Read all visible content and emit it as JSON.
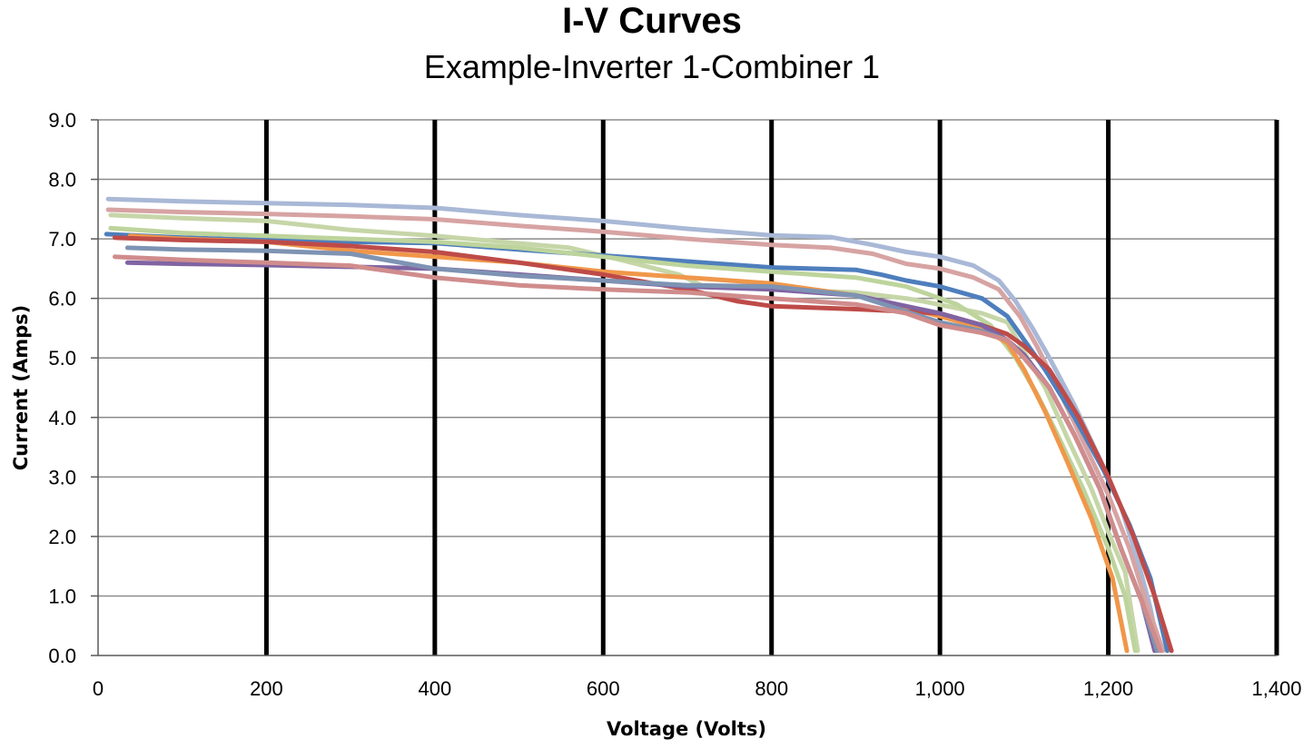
{
  "chart_data": {
    "type": "line",
    "title": "I-V Curves",
    "subtitle": "Example-Inverter 1-Combiner 1",
    "xlabel": "Voltage (Volts)",
    "ylabel": "Current (Amps)",
    "xlim": [
      0,
      1400
    ],
    "ylim": [
      0,
      9
    ],
    "x_ticks": [
      0,
      200,
      400,
      600,
      800,
      1000,
      1200,
      1400
    ],
    "x_tick_labels": [
      "0",
      "200",
      "400",
      "600",
      "800",
      "1,000",
      "1,200",
      "1,400"
    ],
    "y_ticks": [
      0,
      1,
      2,
      3,
      4,
      5,
      6,
      7,
      8,
      9
    ],
    "y_tick_labels": [
      "0.0",
      "1.0",
      "2.0",
      "3.0",
      "4.0",
      "5.0",
      "6.0",
      "7.0",
      "8.0",
      "9.0"
    ],
    "grid": {
      "horizontal": true,
      "vertical": true
    },
    "legend": "none",
    "series": [
      {
        "color": "#a9b8d6",
        "points": [
          [
            12,
            7.67
          ],
          [
            100,
            7.63
          ],
          [
            200,
            7.6
          ],
          [
            300,
            7.57
          ],
          [
            400,
            7.52
          ],
          [
            500,
            7.4
          ],
          [
            600,
            7.3
          ],
          [
            700,
            7.17
          ],
          [
            800,
            7.06
          ],
          [
            870,
            7.03
          ],
          [
            920,
            6.9
          ],
          [
            960,
            6.78
          ],
          [
            1000,
            6.7
          ],
          [
            1040,
            6.55
          ],
          [
            1070,
            6.3
          ],
          [
            1090,
            5.95
          ],
          [
            1110,
            5.5
          ],
          [
            1130,
            5.0
          ],
          [
            1160,
            4.2
          ],
          [
            1190,
            3.3
          ],
          [
            1215,
            2.5
          ],
          [
            1235,
            1.6
          ],
          [
            1250,
            0.8
          ],
          [
            1260,
            0.08
          ]
        ]
      },
      {
        "color": "#d7a3a3",
        "points": [
          [
            12,
            7.49
          ],
          [
            100,
            7.45
          ],
          [
            200,
            7.42
          ],
          [
            300,
            7.38
          ],
          [
            400,
            7.33
          ],
          [
            500,
            7.22
          ],
          [
            600,
            7.12
          ],
          [
            700,
            7.0
          ],
          [
            800,
            6.9
          ],
          [
            870,
            6.85
          ],
          [
            920,
            6.75
          ],
          [
            960,
            6.58
          ],
          [
            1000,
            6.5
          ],
          [
            1040,
            6.35
          ],
          [
            1070,
            6.15
          ],
          [
            1095,
            5.7
          ],
          [
            1115,
            5.2
          ],
          [
            1140,
            4.5
          ],
          [
            1170,
            3.6
          ],
          [
            1200,
            2.7
          ],
          [
            1225,
            1.8
          ],
          [
            1245,
            0.9
          ],
          [
            1265,
            0.08
          ]
        ]
      },
      {
        "color": "#c6d6a8",
        "points": [
          [
            15,
            7.4
          ],
          [
            100,
            7.35
          ],
          [
            200,
            7.3
          ],
          [
            300,
            7.15
          ],
          [
            400,
            7.05
          ],
          [
            480,
            6.95
          ],
          [
            560,
            6.85
          ],
          [
            620,
            6.65
          ],
          [
            690,
            6.4
          ],
          [
            720,
            6.2
          ],
          [
            800,
            6.15
          ],
          [
            900,
            6.1
          ],
          [
            960,
            6.0
          ],
          [
            980,
            5.95
          ],
          [
            1050,
            5.75
          ],
          [
            1080,
            5.6
          ],
          [
            1100,
            5.1
          ],
          [
            1125,
            4.5
          ],
          [
            1150,
            3.7
          ],
          [
            1180,
            2.8
          ],
          [
            1205,
            1.9
          ],
          [
            1220,
            1.4
          ],
          [
            1228,
            0.7
          ],
          [
            1235,
            0.08
          ]
        ]
      },
      {
        "color": "#4e7ebd",
        "points": [
          [
            10,
            7.08
          ],
          [
            100,
            7.02
          ],
          [
            200,
            6.98
          ],
          [
            300,
            6.95
          ],
          [
            400,
            6.93
          ],
          [
            500,
            6.82
          ],
          [
            600,
            6.72
          ],
          [
            700,
            6.62
          ],
          [
            800,
            6.52
          ],
          [
            900,
            6.48
          ],
          [
            930,
            6.4
          ],
          [
            960,
            6.3
          ],
          [
            1000,
            6.2
          ],
          [
            1050,
            6.0
          ],
          [
            1080,
            5.7
          ],
          [
            1100,
            5.3
          ],
          [
            1125,
            4.8
          ],
          [
            1160,
            4.0
          ],
          [
            1195,
            3.1
          ],
          [
            1225,
            2.2
          ],
          [
            1250,
            1.3
          ],
          [
            1270,
            0.08
          ]
        ]
      },
      {
        "color": "#bdd49c",
        "points": [
          [
            15,
            7.18
          ],
          [
            100,
            7.1
          ],
          [
            200,
            7.05
          ],
          [
            300,
            7.0
          ],
          [
            400,
            6.95
          ],
          [
            500,
            6.85
          ],
          [
            600,
            6.7
          ],
          [
            700,
            6.55
          ],
          [
            800,
            6.45
          ],
          [
            900,
            6.35
          ],
          [
            960,
            6.2
          ],
          [
            1020,
            5.9
          ],
          [
            1060,
            5.55
          ],
          [
            1090,
            5.0
          ],
          [
            1115,
            4.4
          ],
          [
            1140,
            3.7
          ],
          [
            1170,
            2.8
          ],
          [
            1200,
            1.8
          ],
          [
            1220,
            1.0
          ],
          [
            1232,
            0.08
          ]
        ]
      },
      {
        "color": "#f0974a",
        "points": [
          [
            38,
            7.05
          ],
          [
            100,
            7.0
          ],
          [
            200,
            6.95
          ],
          [
            300,
            6.8
          ],
          [
            400,
            6.7
          ],
          [
            500,
            6.6
          ],
          [
            600,
            6.45
          ],
          [
            700,
            6.35
          ],
          [
            800,
            6.25
          ],
          [
            900,
            6.05
          ],
          [
            1000,
            5.7
          ],
          [
            1050,
            5.5
          ],
          [
            1080,
            5.25
          ],
          [
            1100,
            4.8
          ],
          [
            1125,
            4.1
          ],
          [
            1150,
            3.3
          ],
          [
            1180,
            2.3
          ],
          [
            1205,
            1.3
          ],
          [
            1222,
            0.08
          ]
        ]
      },
      {
        "color": "#be4b48",
        "points": [
          [
            20,
            7.02
          ],
          [
            100,
            6.98
          ],
          [
            200,
            6.95
          ],
          [
            300,
            6.88
          ],
          [
            400,
            6.78
          ],
          [
            500,
            6.6
          ],
          [
            600,
            6.4
          ],
          [
            700,
            6.15
          ],
          [
            760,
            5.95
          ],
          [
            800,
            5.87
          ],
          [
            900,
            5.82
          ],
          [
            960,
            5.78
          ],
          [
            1000,
            5.75
          ],
          [
            1050,
            5.55
          ],
          [
            1080,
            5.4
          ],
          [
            1100,
            5.2
          ],
          [
            1130,
            4.8
          ],
          [
            1165,
            4.0
          ],
          [
            1200,
            3.0
          ],
          [
            1230,
            2.0
          ],
          [
            1255,
            1.0
          ],
          [
            1275,
            0.08
          ]
        ]
      },
      {
        "color": "#8064a2",
        "points": [
          [
            35,
            6.6
          ],
          [
            100,
            6.58
          ],
          [
            200,
            6.56
          ],
          [
            300,
            6.53
          ],
          [
            400,
            6.5
          ],
          [
            500,
            6.4
          ],
          [
            600,
            6.3
          ],
          [
            700,
            6.2
          ],
          [
            800,
            6.15
          ],
          [
            900,
            6.05
          ],
          [
            1000,
            5.75
          ],
          [
            1050,
            5.55
          ],
          [
            1080,
            5.3
          ],
          [
            1100,
            5.05
          ],
          [
            1130,
            4.5
          ],
          [
            1160,
            3.7
          ],
          [
            1190,
            2.8
          ],
          [
            1215,
            1.8
          ],
          [
            1240,
            0.9
          ],
          [
            1255,
            0.08
          ]
        ]
      },
      {
        "color": "#7e93b3",
        "points": [
          [
            35,
            6.85
          ],
          [
            100,
            6.82
          ],
          [
            200,
            6.8
          ],
          [
            300,
            6.75
          ],
          [
            400,
            6.5
          ],
          [
            500,
            6.38
          ],
          [
            600,
            6.3
          ],
          [
            700,
            6.22
          ],
          [
            800,
            6.2
          ],
          [
            900,
            6.05
          ],
          [
            1000,
            5.6
          ],
          [
            1050,
            5.45
          ],
          [
            1080,
            5.3
          ],
          [
            1100,
            5.0
          ],
          [
            1130,
            4.5
          ],
          [
            1160,
            3.7
          ],
          [
            1190,
            2.8
          ],
          [
            1215,
            1.8
          ],
          [
            1240,
            0.9
          ],
          [
            1258,
            0.08
          ]
        ]
      },
      {
        "color": "#d08c8c",
        "points": [
          [
            20,
            6.7
          ],
          [
            100,
            6.65
          ],
          [
            200,
            6.6
          ],
          [
            300,
            6.55
          ],
          [
            400,
            6.35
          ],
          [
            500,
            6.22
          ],
          [
            600,
            6.15
          ],
          [
            700,
            6.1
          ],
          [
            800,
            6.0
          ],
          [
            900,
            5.9
          ],
          [
            960,
            5.75
          ],
          [
            1000,
            5.55
          ],
          [
            1050,
            5.42
          ],
          [
            1080,
            5.3
          ],
          [
            1100,
            5.0
          ],
          [
            1130,
            4.5
          ],
          [
            1160,
            3.7
          ],
          [
            1190,
            2.8
          ],
          [
            1215,
            1.8
          ],
          [
            1240,
            0.9
          ],
          [
            1262,
            0.08
          ]
        ]
      }
    ]
  }
}
